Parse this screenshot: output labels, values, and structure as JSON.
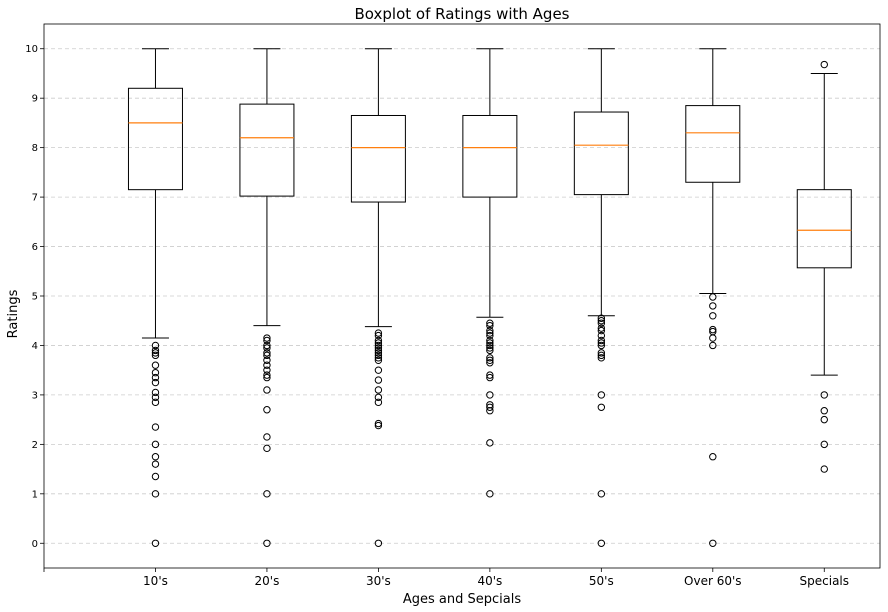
{
  "chart_data": {
    "type": "boxplot",
    "title": "Boxplot of Ratings with Ages",
    "xlabel": "Ages and Sepcials",
    "ylabel": "Ratings",
    "ylim": [
      -0.5,
      10.5
    ],
    "yticks": [
      0,
      1,
      2,
      3,
      4,
      5,
      6,
      7,
      8,
      9,
      10
    ],
    "grid": "y-dashed",
    "colors": {
      "box": "#000000",
      "median": "#ff7f0e",
      "grid": "#cccccc"
    },
    "categories": [
      "10's",
      "20's",
      "30's",
      "40's",
      "50's",
      "Over 60's",
      "Specials"
    ],
    "boxes": [
      {
        "whisker_low": 4.15,
        "q1": 7.15,
        "median": 8.5,
        "q3": 9.2,
        "whisker_high": 10.0,
        "outliers": [
          4.0,
          3.9,
          3.85,
          3.8,
          3.6,
          3.45,
          3.35,
          3.25,
          3.05,
          2.95,
          2.85,
          2.35,
          2.0,
          1.75,
          1.6,
          1.35,
          1.0,
          0.0
        ]
      },
      {
        "whisker_low": 4.4,
        "q1": 7.02,
        "median": 8.2,
        "q3": 8.88,
        "whisker_high": 10.0,
        "outliers": [
          4.15,
          4.1,
          4.0,
          3.95,
          3.85,
          3.8,
          3.7,
          3.6,
          3.5,
          3.4,
          3.35,
          3.1,
          2.7,
          2.15,
          1.92,
          1.0,
          0.0
        ]
      },
      {
        "whisker_low": 4.38,
        "q1": 6.9,
        "median": 8.0,
        "q3": 8.65,
        "whisker_high": 10.0,
        "outliers": [
          4.25,
          4.2,
          4.1,
          4.05,
          4.0,
          3.95,
          3.9,
          3.85,
          3.8,
          3.75,
          3.7,
          3.5,
          3.3,
          3.1,
          2.95,
          2.85,
          2.42,
          2.38,
          0.0
        ]
      },
      {
        "whisker_low": 4.57,
        "q1": 7.0,
        "median": 8.0,
        "q3": 8.65,
        "whisker_high": 10.0,
        "outliers": [
          4.45,
          4.4,
          4.3,
          4.25,
          4.2,
          4.1,
          4.05,
          4.0,
          3.95,
          3.9,
          3.75,
          3.7,
          3.65,
          3.4,
          3.35,
          3.0,
          2.8,
          2.75,
          2.68,
          2.03,
          1.0
        ]
      },
      {
        "whisker_low": 4.6,
        "q1": 7.05,
        "median": 8.05,
        "q3": 8.72,
        "whisker_high": 10.0,
        "outliers": [
          4.55,
          4.5,
          4.45,
          4.35,
          4.3,
          4.2,
          4.1,
          4.05,
          4.0,
          3.85,
          3.8,
          3.75,
          3.0,
          2.75,
          1.0,
          0.0
        ]
      },
      {
        "whisker_low": 5.05,
        "q1": 7.3,
        "median": 8.3,
        "q3": 8.85,
        "whisker_high": 10.0,
        "outliers": [
          4.98,
          4.8,
          4.6,
          4.32,
          4.28,
          4.15,
          4.0,
          1.75,
          0.0
        ]
      },
      {
        "whisker_low": 3.4,
        "q1": 5.57,
        "median": 6.33,
        "q3": 7.15,
        "whisker_high": 9.5,
        "outliers": [
          9.68,
          3.0,
          2.68,
          2.5,
          2.0,
          1.5
        ]
      }
    ]
  }
}
